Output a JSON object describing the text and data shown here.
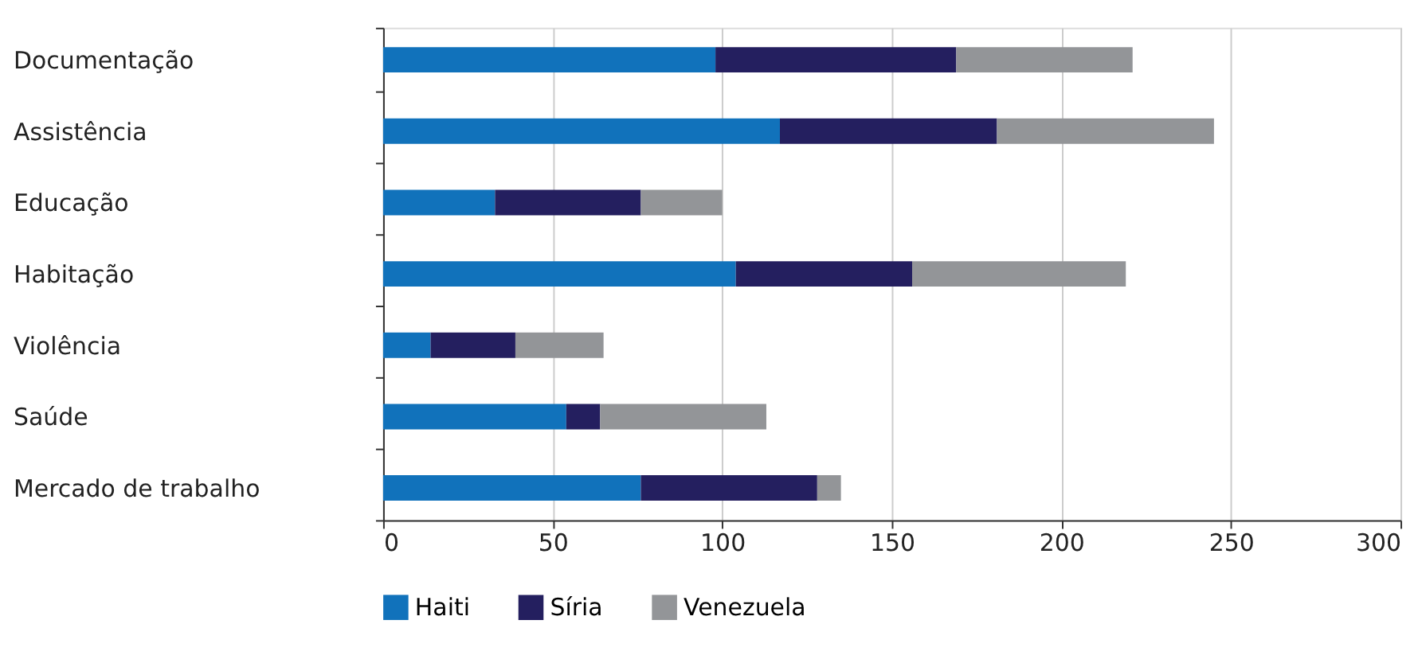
{
  "chart_data": {
    "type": "bar",
    "orientation": "horizontal",
    "stacked": true,
    "categories": [
      "Documentação",
      "Assistência",
      "Educação",
      "Habitação",
      "Violência",
      "Saúde",
      "Mercado de trabalho"
    ],
    "series": [
      {
        "name": "Haiti",
        "color": "#1172bb",
        "values": [
          98,
          117,
          33,
          104,
          14,
          54,
          76
        ]
      },
      {
        "name": "Síria",
        "color": "#241f5f",
        "values": [
          71,
          64,
          43,
          52,
          25,
          10,
          52
        ]
      },
      {
        "name": "Venezuela",
        "color": "#939598",
        "values": [
          52,
          64,
          24,
          63,
          26,
          49,
          7
        ]
      }
    ],
    "xlim": [
      0,
      300
    ],
    "xticks": [
      0,
      50,
      100,
      150,
      200,
      250,
      300
    ],
    "grid": "x",
    "legend": "bottom"
  }
}
